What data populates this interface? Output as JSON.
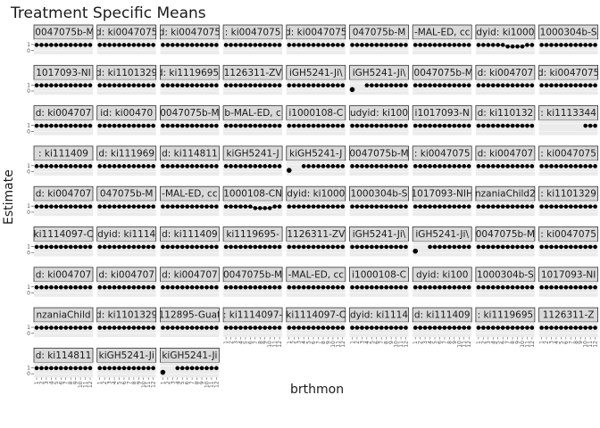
{
  "title": "Treatment Specific Means",
  "xlabel": "brthmon",
  "ylabel": "Estimate",
  "colors": {
    "strip_fill": "#d9d9d9",
    "strip_border": "#333333",
    "panel_bg": "#ebebeb",
    "grid": "#ffffff",
    "point": "#000000",
    "line": "#000000"
  },
  "chart_data": {
    "type": "scatter",
    "grid": true,
    "x_ticks": [
      "1",
      "2",
      "3",
      "4",
      "5",
      "6",
      "7",
      "8",
      "9",
      "10",
      "11",
      "12"
    ],
    "y_ticks": [
      "0",
      "1"
    ],
    "panels": [
      {
        "strip": "i0047075b-M",
        "trend": "flat"
      },
      {
        "strip": "d: ki0047075",
        "trend": "flat"
      },
      {
        "strip": "d: ki0047075",
        "trend": "flat"
      },
      {
        "strip": ": ki0047075",
        "trend": "flat"
      },
      {
        "strip": "d: ki0047075",
        "trend": "flat"
      },
      {
        "strip": "047075b-M",
        "trend": "flat"
      },
      {
        "strip": "-MAL-ED, cc",
        "trend": "flat"
      },
      {
        "strip": "dyid: ki1000",
        "trend": "dip"
      },
      {
        "strip": "1000304b-S",
        "trend": "flat"
      },
      {
        "strip": "1017093-NI",
        "trend": "flat"
      },
      {
        "strip": "d: ki1101329",
        "trend": "flat"
      },
      {
        "strip": "d: ki1119695-",
        "trend": "flat"
      },
      {
        "strip": "1126311-ZV",
        "trend": "flat"
      },
      {
        "strip": "iGH5241-Ji\\",
        "trend": "flat"
      },
      {
        "strip": "iGH5241-Ji\\",
        "trend": "outlier"
      },
      {
        "strip": "i0047075b-M",
        "trend": "flat"
      },
      {
        "strip": "d: ki004707",
        "trend": "flat"
      },
      {
        "strip": "d: ki0047075",
        "trend": "flat"
      },
      {
        "strip": "d: ki004707",
        "trend": "flat"
      },
      {
        "strip": "id: ki00470",
        "trend": "flat"
      },
      {
        "strip": "0047075b-M",
        "trend": "flat"
      },
      {
        "strip": "b-MAL-ED, c",
        "trend": "flat"
      },
      {
        "strip": "i1000108-C",
        "trend": "flat"
      },
      {
        "strip": "udyid: ki100",
        "trend": "flat"
      },
      {
        "strip": "i1017093-N",
        "trend": "flat"
      },
      {
        "strip": "d: ki110132",
        "trend": "flat"
      },
      {
        "strip": ": ki1113344",
        "trend": "partial"
      },
      {
        "strip": ": ki111409",
        "trend": "flat"
      },
      {
        "strip": "d: ki111969",
        "trend": "flat"
      },
      {
        "strip": "d: ki114811",
        "trend": "flat"
      },
      {
        "strip": "kiGH5241-J",
        "trend": "flat"
      },
      {
        "strip": "kiGH5241-J",
        "trend": "outlier"
      },
      {
        "strip": "0047075b-M",
        "trend": "flat"
      },
      {
        "strip": ": ki0047075",
        "trend": "flat"
      },
      {
        "strip": "d: ki004707",
        "trend": "flat"
      },
      {
        "strip": ": ki0047075",
        "trend": "flat"
      },
      {
        "strip": "d: ki004707",
        "trend": "flat"
      },
      {
        "strip": "047075b-M",
        "trend": "flat"
      },
      {
        "strip": "-MAL-ED, cc",
        "trend": "flat"
      },
      {
        "strip": "1000108-CN",
        "trend": "dip"
      },
      {
        "strip": "dyid: ki1000",
        "trend": "flat"
      },
      {
        "strip": "1000304b-S",
        "trend": "flat"
      },
      {
        "strip": "1017093-NIH",
        "trend": "flat"
      },
      {
        "strip": "nzaniaChild2",
        "trend": "flat"
      },
      {
        "strip": ": ki1101329",
        "trend": "flat"
      },
      {
        "strip": "ki1114097-C",
        "trend": "flat"
      },
      {
        "strip": "dyid: ki1114",
        "trend": "flat"
      },
      {
        "strip": "d: ki111409",
        "trend": "flat"
      },
      {
        "strip": "ki1119695-",
        "trend": "flat"
      },
      {
        "strip": "1126311-ZV",
        "trend": "flat"
      },
      {
        "strip": "iGH5241-Ji\\",
        "trend": "flat"
      },
      {
        "strip": "iGH5241-Ji\\",
        "trend": "outlier"
      },
      {
        "strip": "0047075b-M",
        "trend": "flat"
      },
      {
        "strip": ": ki0047075",
        "trend": "flat"
      },
      {
        "strip": "d: ki004707",
        "trend": "flat"
      },
      {
        "strip": "d: ki004707",
        "trend": "flat"
      },
      {
        "strip": "d: ki004707",
        "trend": "flat"
      },
      {
        "strip": "0047075b-M",
        "trend": "flat"
      },
      {
        "strip": "-MAL-ED, cc",
        "trend": "flat"
      },
      {
        "strip": "i1000108-C",
        "trend": "flat"
      },
      {
        "strip": "dyid: ki100",
        "trend": "flat"
      },
      {
        "strip": "1000304b-S",
        "trend": "flat"
      },
      {
        "strip": "1017093-NI",
        "trend": "flat"
      },
      {
        "strip": "nzaniaChild",
        "trend": "flat"
      },
      {
        "strip": "d: ki1101329",
        "trend": "flat"
      },
      {
        "strip": "112895-Guat",
        "trend": "flat"
      },
      {
        "strip": ": ki1114097-",
        "trend": "flat"
      },
      {
        "strip": "ki1114097-C",
        "trend": "flat"
      },
      {
        "strip": "dyid: ki1114",
        "trend": "flat"
      },
      {
        "strip": "d: ki111409",
        "trend": "flat"
      },
      {
        "strip": ": ki1119695",
        "trend": "flat"
      },
      {
        "strip": "1126311-Z",
        "trend": "flat"
      },
      {
        "strip": "d: ki114811",
        "trend": "flat"
      },
      {
        "strip": "kiGH5241-Ji",
        "trend": "flat"
      },
      {
        "strip": "kiGH5241-Ji",
        "trend": "outlier"
      }
    ]
  }
}
